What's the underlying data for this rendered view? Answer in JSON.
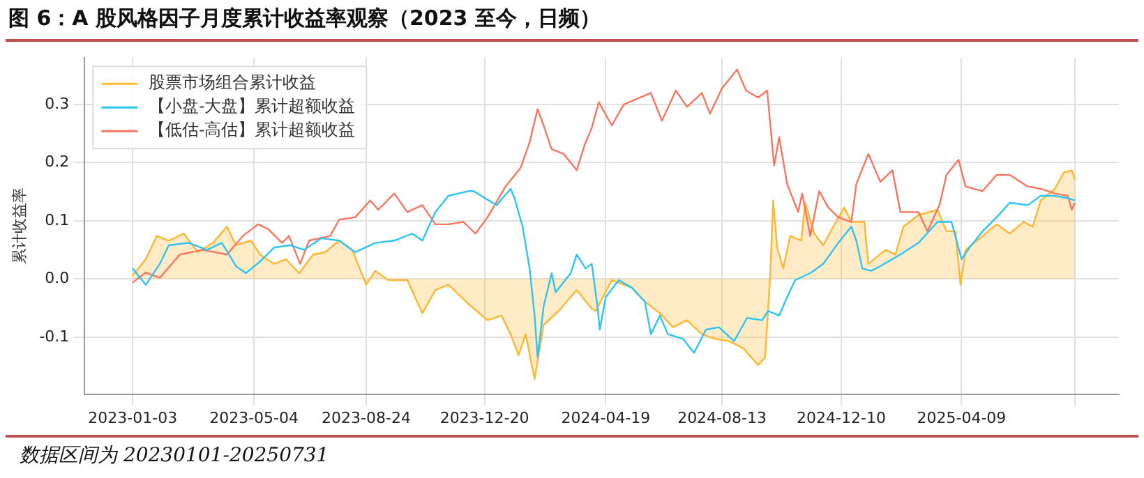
{
  "chart_data": {
    "type": "line",
    "title": "图 6：A 股风格因子月度累计收益率观察（2023 至今，日频）",
    "ylabel": "累计收益率",
    "annotations": [
      "数据区间为 20230101-20250731"
    ],
    "xlim": [
      "2022-11-16",
      "2025-09-13"
    ],
    "ylim": [
      -0.198,
      0.38
    ],
    "xticks": [
      "2023-01-03",
      "2023-05-04",
      "2023-08-24",
      "2023-12-20",
      "2024-04-19",
      "2024-08-13",
      "2024-12-10",
      "2025-04-09",
      {
        "value": "2025-07-31",
        "label": null
      }
    ],
    "yticks": [
      -0.1,
      {
        "value": 0,
        "label": "0.0"
      },
      0.1,
      0.2,
      0.3
    ],
    "grid": true,
    "legend": "top left",
    "marker": "none",
    "series": [
      {
        "name": "股票市场组合累计收益",
        "type": "area",
        "color": "#ffb732",
        "x": [
          "2023-01-03",
          "2023-01-16",
          "2023-01-27",
          "2023-02-08",
          "2023-02-23",
          "2023-03-09",
          "2023-03-24",
          "2023-04-07",
          "2023-04-16",
          "2023-05-01",
          "2023-05-10",
          "2023-05-24",
          "2023-06-05",
          "2023-06-18",
          "2023-07-02",
          "2023-07-14",
          "2023-07-28",
          "2023-08-10",
          "2023-08-24",
          "2023-09-02",
          "2023-09-15",
          "2023-10-04",
          "2023-10-19",
          "2023-11-01",
          "2023-11-14",
          "2023-12-04",
          "2023-12-23",
          "2024-01-06",
          "2024-01-15",
          "2024-01-23",
          "2024-01-30",
          "2024-02-08",
          "2024-02-17",
          "2024-03-03",
          "2024-03-21",
          "2024-04-05",
          "2024-04-09",
          "2024-04-25",
          "2024-05-15",
          "2024-05-28",
          "2024-06-12",
          "2024-06-25",
          "2024-07-09",
          "2024-07-24",
          "2024-08-06",
          "2024-08-20",
          "2024-09-03",
          "2024-09-18",
          "2024-09-25",
          "2024-09-30",
          "2024-10-03",
          "2024-10-07",
          "2024-10-13",
          "2024-10-20",
          "2024-10-31",
          "2024-11-04",
          "2024-11-13",
          "2024-11-22",
          "2024-12-02",
          "2024-12-13",
          "2024-12-20",
          "2025-01-02",
          "2025-01-06",
          "2025-01-23",
          "2025-02-02",
          "2025-02-10",
          "2025-02-25",
          "2025-03-16",
          "2025-03-25",
          "2025-04-03",
          "2025-04-08",
          "2025-04-13",
          "2025-04-30",
          "2025-05-14",
          "2025-05-27",
          "2025-06-10",
          "2025-06-19",
          "2025-06-27",
          "2025-07-11",
          "2025-07-20",
          "2025-07-28",
          "2025-07-31"
        ],
        "values": [
          0.006,
          0.034,
          0.074,
          0.066,
          0.078,
          0.046,
          0.062,
          0.09,
          0.058,
          0.066,
          0.042,
          0.026,
          0.034,
          0.01,
          0.042,
          0.046,
          0.066,
          0.05,
          -0.01,
          0.014,
          -0.002,
          -0.002,
          -0.059,
          -0.019,
          -0.01,
          -0.043,
          -0.071,
          -0.063,
          -0.095,
          -0.131,
          -0.095,
          -0.172,
          -0.079,
          -0.055,
          -0.019,
          -0.051,
          -0.055,
          -0.002,
          -0.015,
          -0.039,
          -0.059,
          -0.083,
          -0.071,
          -0.095,
          -0.103,
          -0.107,
          -0.119,
          -0.148,
          -0.135,
          0.002,
          0.135,
          0.054,
          0.018,
          0.074,
          0.066,
          0.131,
          0.078,
          0.058,
          0.09,
          0.123,
          0.098,
          0.098,
          0.026,
          0.05,
          0.042,
          0.09,
          0.11,
          0.119,
          0.082,
          0.082,
          -0.01,
          0.05,
          0.074,
          0.094,
          0.078,
          0.098,
          0.09,
          0.135,
          0.155,
          0.183,
          0.187,
          0.171
        ]
      },
      {
        "name": "【小盘-大盘】累计超额收益",
        "type": "line",
        "color": "#2ec4f2",
        "x": [
          "2023-01-03",
          "2023-01-16",
          "2023-01-30",
          "2023-02-08",
          "2023-02-28",
          "2023-03-18",
          "2023-04-02",
          "2023-04-16",
          "2023-04-26",
          "2023-05-10",
          "2023-05-24",
          "2023-06-09",
          "2023-06-23",
          "2023-07-10",
          "2023-07-28",
          "2023-08-13",
          "2023-09-02",
          "2023-09-21",
          "2023-10-09",
          "2023-10-19",
          "2023-11-01",
          "2023-11-14",
          "2023-12-04",
          "2023-12-09",
          "2024-01-01",
          "2024-01-15",
          "2024-01-19",
          "2024-01-27",
          "2024-02-03",
          "2024-02-08",
          "2024-02-11",
          "2024-02-17",
          "2024-02-25",
          "2024-02-29",
          "2024-03-15",
          "2024-03-21",
          "2024-03-30",
          "2024-04-05",
          "2024-04-11",
          "2024-04-13",
          "2024-04-19",
          "2024-05-02",
          "2024-05-15",
          "2024-05-28",
          "2024-06-03",
          "2024-06-12",
          "2024-06-20",
          "2024-07-05",
          "2024-07-16",
          "2024-07-28",
          "2024-08-10",
          "2024-08-25",
          "2024-09-07",
          "2024-09-22",
          "2024-09-28",
          "2024-10-09",
          "2024-10-16",
          "2024-10-25",
          "2024-11-09",
          "2024-11-22",
          "2024-12-07",
          "2024-12-20",
          "2024-12-25",
          "2024-12-31",
          "2025-01-09",
          "2025-01-18",
          "2025-02-07",
          "2025-02-25",
          "2025-03-16",
          "2025-03-30",
          "2025-04-09",
          "2025-04-17",
          "2025-04-30",
          "2025-05-14",
          "2025-05-27",
          "2025-06-14",
          "2025-06-27",
          "2025-07-11",
          "2025-07-24",
          "2025-07-31"
        ],
        "values": [
          0.018,
          -0.01,
          0.026,
          0.058,
          0.062,
          0.05,
          0.062,
          0.022,
          0.01,
          0.03,
          0.054,
          0.058,
          0.05,
          0.07,
          0.066,
          0.046,
          0.062,
          0.066,
          0.078,
          0.066,
          0.115,
          0.143,
          0.151,
          0.151,
          0.127,
          0.155,
          0.139,
          0.09,
          0.018,
          -0.063,
          -0.135,
          -0.047,
          0.01,
          -0.023,
          0.01,
          0.042,
          0.018,
          0.026,
          -0.051,
          -0.087,
          -0.031,
          -0.002,
          -0.015,
          -0.039,
          -0.095,
          -0.063,
          -0.095,
          -0.103,
          -0.127,
          -0.087,
          -0.083,
          -0.107,
          -0.067,
          -0.071,
          -0.055,
          -0.063,
          -0.035,
          -0.002,
          0.01,
          0.026,
          0.062,
          0.09,
          0.066,
          0.018,
          0.014,
          0.022,
          0.042,
          0.062,
          0.098,
          0.098,
          0.034,
          0.054,
          0.082,
          0.106,
          0.131,
          0.127,
          0.143,
          0.143,
          0.139,
          0.135
        ]
      },
      {
        "name": "【低估-高估】累计超额收益",
        "type": "line",
        "color": "#fa7560",
        "x": [
          "2023-01-03",
          "2023-01-16",
          "2023-01-30",
          "2023-02-19",
          "2023-03-14",
          "2023-04-07",
          "2023-04-23",
          "2023-05-08",
          "2023-05-18",
          "2023-06-01",
          "2023-06-08",
          "2023-06-19",
          "2023-06-28",
          "2023-07-19",
          "2023-07-28",
          "2023-08-13",
          "2023-08-28",
          "2023-09-05",
          "2023-09-21",
          "2023-10-04",
          "2023-10-19",
          "2023-11-01",
          "2023-11-14",
          "2023-11-29",
          "2023-12-11",
          "2023-12-23",
          "2024-01-10",
          "2024-01-25",
          "2024-02-03",
          "2024-02-11",
          "2024-02-17",
          "2024-02-25",
          "2024-03-08",
          "2024-03-21",
          "2024-03-29",
          "2024-04-05",
          "2024-04-12",
          "2024-04-25",
          "2024-05-07",
          "2024-06-03",
          "2024-06-14",
          "2024-06-28",
          "2024-07-09",
          "2024-07-24",
          "2024-08-01",
          "2024-08-13",
          "2024-08-28",
          "2024-09-06",
          "2024-09-18",
          "2024-09-27",
          "2024-10-04",
          "2024-10-09",
          "2024-10-17",
          "2024-10-28",
          "2024-11-01",
          "2024-11-09",
          "2024-11-18",
          "2024-11-27",
          "2024-12-07",
          "2024-12-20",
          "2024-12-25",
          "2025-01-06",
          "2025-01-18",
          "2025-01-30",
          "2025-02-07",
          "2025-02-25",
          "2025-03-06",
          "2025-03-18",
          "2025-03-25",
          "2025-04-06",
          "2025-04-13",
          "2025-04-30",
          "2025-05-14",
          "2025-05-27",
          "2025-06-14",
          "2025-06-27",
          "2025-07-11",
          "2025-07-24",
          "2025-07-28",
          "2025-07-31"
        ],
        "values": [
          -0.006,
          0.011,
          0.002,
          0.042,
          0.05,
          0.042,
          0.074,
          0.094,
          0.086,
          0.062,
          0.074,
          0.026,
          0.066,
          0.074,
          0.102,
          0.106,
          0.135,
          0.119,
          0.147,
          0.115,
          0.127,
          0.094,
          0.094,
          0.098,
          0.078,
          0.106,
          0.159,
          0.191,
          0.235,
          0.292,
          0.264,
          0.223,
          0.215,
          0.187,
          0.231,
          0.26,
          0.304,
          0.264,
          0.3,
          0.32,
          0.272,
          0.324,
          0.296,
          0.32,
          0.284,
          0.328,
          0.36,
          0.324,
          0.312,
          0.324,
          0.195,
          0.244,
          0.163,
          0.115,
          0.147,
          0.074,
          0.151,
          0.123,
          0.106,
          0.098,
          0.163,
          0.215,
          0.167,
          0.187,
          0.115,
          0.115,
          0.082,
          0.127,
          0.179,
          0.205,
          0.159,
          0.151,
          0.179,
          0.179,
          0.159,
          0.155,
          0.147,
          0.143,
          0.119,
          0.131
        ]
      }
    ]
  }
}
